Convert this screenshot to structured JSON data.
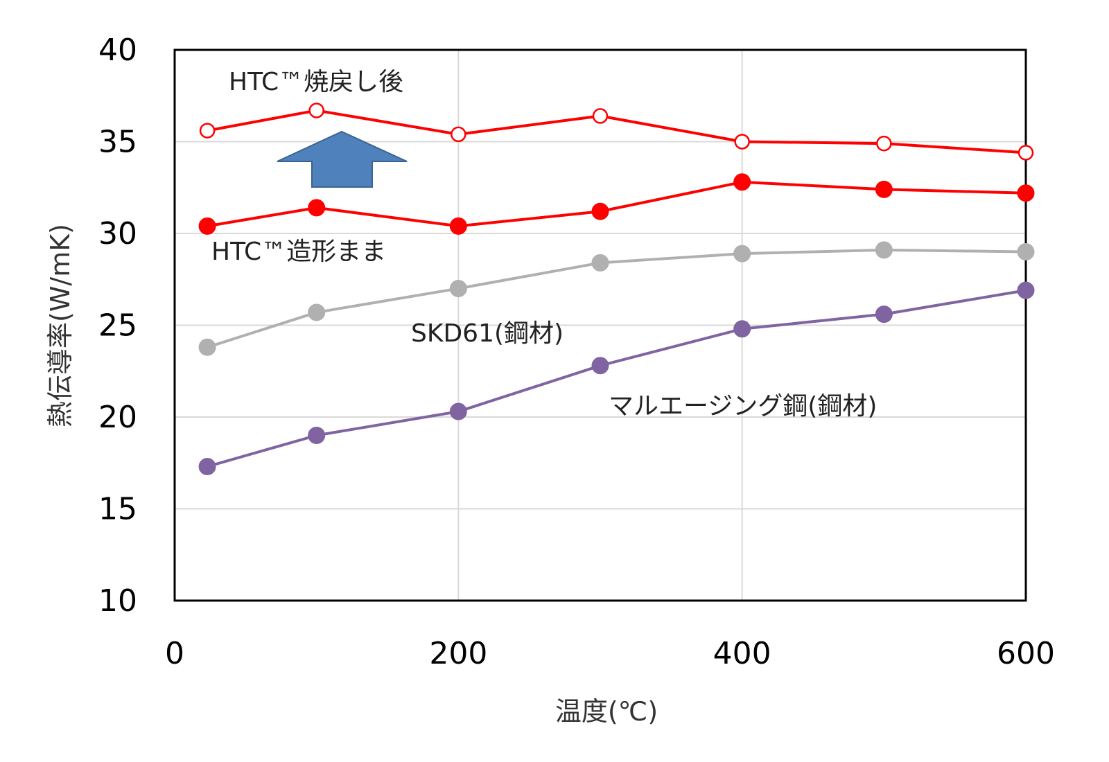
{
  "chart_data": {
    "type": "line",
    "xlabel": "温度(℃)",
    "ylabel": "熱伝導率(W/mK)",
    "xlim": [
      0,
      600
    ],
    "ylim": [
      10,
      40
    ],
    "xticks": [
      "0",
      "200",
      "400",
      "600"
    ],
    "yticks": [
      "10",
      "15",
      "20",
      "25",
      "30",
      "35",
      "40"
    ],
    "grid": true,
    "x": [
      23,
      100,
      200,
      300,
      400,
      500,
      600
    ],
    "series": [
      {
        "name": "HTC™焼戻し後",
        "values": [
          35.6,
          36.7,
          35.4,
          36.4,
          35.0,
          34.9,
          34.4
        ],
        "color": "#ff0000",
        "marker": "open-circle"
      },
      {
        "name": "HTC™造形まま",
        "values": [
          30.4,
          31.4,
          30.4,
          31.2,
          32.8,
          32.4,
          32.2
        ],
        "color": "#ff0000",
        "marker": "filled-circle"
      },
      {
        "name": "SKD61(鋼材)",
        "values": [
          23.8,
          25.7,
          27.0,
          28.4,
          28.9,
          29.1,
          29.0
        ],
        "color": "#b0b0b0",
        "marker": "filled-circle"
      },
      {
        "name": "マルエージング鋼(鋼材)",
        "values": [
          17.3,
          19.0,
          20.3,
          22.8,
          24.8,
          25.6,
          26.9
        ],
        "color": "#8064a2",
        "marker": "filled-circle"
      }
    ],
    "annotations": [
      {
        "type": "arrow-up",
        "color": "#4f81bd",
        "meaning": "improvement after tempering"
      }
    ]
  }
}
